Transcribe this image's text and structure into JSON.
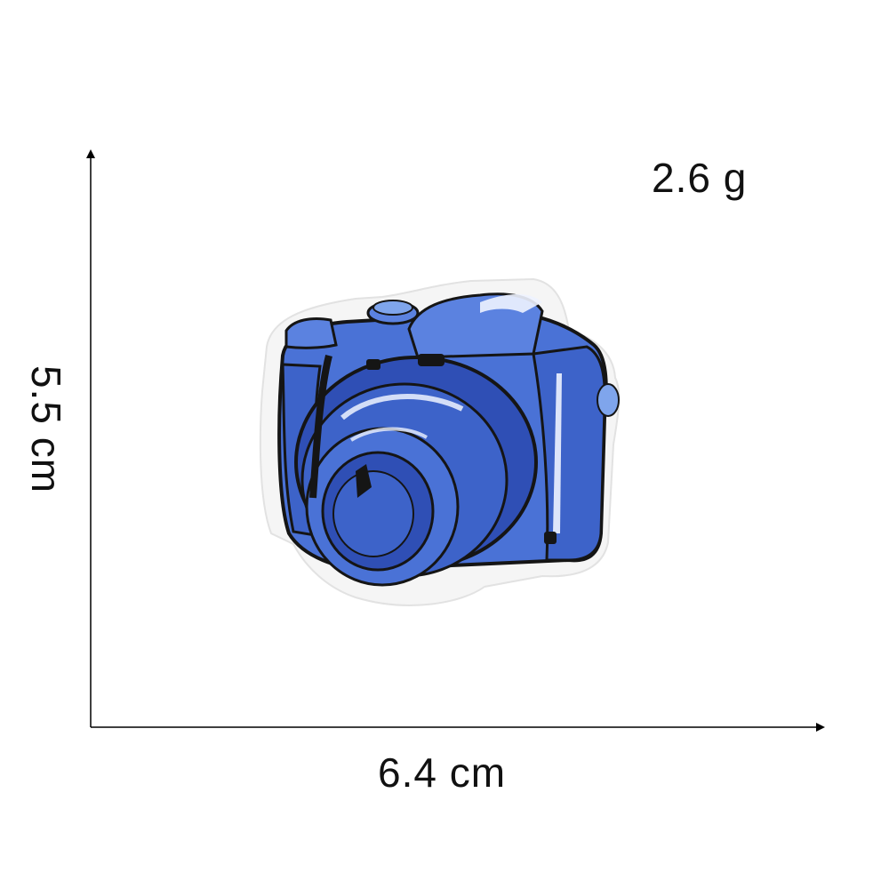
{
  "labels": {
    "weight": "2.6 g",
    "width": "6.4 cm",
    "height": "5.5 cm"
  },
  "product": {
    "subject": "embroidered camera patch",
    "icon": "camera-icon"
  },
  "colors": {
    "background": "#ffffff",
    "text": "#111111",
    "axis": "#000000",
    "patch_border": "#f4f4f4",
    "blue_dark": "#2f4fb5",
    "blue_mid": "#4a72d6",
    "blue_light": "#7fa5ec",
    "outline": "#151515"
  }
}
